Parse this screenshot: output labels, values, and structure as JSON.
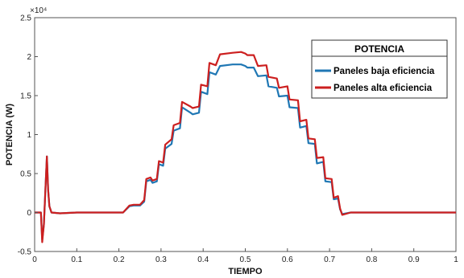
{
  "chart_data": {
    "type": "line",
    "xlabel": "TIEMPO",
    "ylabel": "POTENCIA (W)",
    "xlim": [
      0,
      1
    ],
    "ylim": [
      -0.5,
      2.5
    ],
    "y_multiplier": "×10⁴",
    "xticks": [
      "0",
      "0.1",
      "0.2",
      "0.3",
      "0.4",
      "0.5",
      "0.6",
      "0.7",
      "0.8",
      "0.9",
      "1"
    ],
    "yticks": [
      "-0.5",
      "0",
      "0.5",
      "1",
      "1.5",
      "2",
      "2.5"
    ],
    "legend": {
      "title": "POTENCIA",
      "position": "top-right"
    },
    "grid": false,
    "series": [
      {
        "name": "Paneles baja eficiencia",
        "color": "#1f77b4",
        "x": [
          0,
          0.015,
          0.018,
          0.022,
          0.026,
          0.029,
          0.032,
          0.035,
          0.04,
          0.06,
          0.1,
          0.15,
          0.21,
          0.225,
          0.235,
          0.25,
          0.26,
          0.265,
          0.275,
          0.28,
          0.29,
          0.295,
          0.305,
          0.31,
          0.325,
          0.33,
          0.345,
          0.35,
          0.37,
          0.375,
          0.39,
          0.395,
          0.41,
          0.415,
          0.43,
          0.44,
          0.47,
          0.49,
          0.5,
          0.505,
          0.52,
          0.53,
          0.55,
          0.555,
          0.575,
          0.58,
          0.6,
          0.605,
          0.625,
          0.63,
          0.645,
          0.65,
          0.665,
          0.67,
          0.685,
          0.69,
          0.705,
          0.71,
          0.72,
          0.725,
          0.73,
          0.75,
          0.8,
          0.9,
          1.0
        ],
        "y": [
          0,
          0,
          -0.35,
          -0.15,
          0.35,
          0.72,
          0.3,
          0.08,
          0.0,
          -0.01,
          0,
          0,
          0,
          0.08,
          0.09,
          0.09,
          0.14,
          0.4,
          0.42,
          0.38,
          0.4,
          0.62,
          0.6,
          0.82,
          0.88,
          1.05,
          1.08,
          1.35,
          1.28,
          1.26,
          1.28,
          1.55,
          1.52,
          1.8,
          1.77,
          1.88,
          1.9,
          1.9,
          1.88,
          1.86,
          1.86,
          1.75,
          1.76,
          1.62,
          1.6,
          1.49,
          1.5,
          1.35,
          1.34,
          1.09,
          1.11,
          0.89,
          0.88,
          0.63,
          0.65,
          0.4,
          0.39,
          0.17,
          0.18,
          0.04,
          -0.02,
          0,
          0,
          0,
          0
        ]
      },
      {
        "name": "Paneles alta eficiencia",
        "color": "#cc1f1f",
        "x": [
          0,
          0.015,
          0.018,
          0.022,
          0.026,
          0.029,
          0.032,
          0.035,
          0.04,
          0.06,
          0.1,
          0.15,
          0.21,
          0.225,
          0.235,
          0.25,
          0.26,
          0.265,
          0.275,
          0.28,
          0.29,
          0.295,
          0.305,
          0.31,
          0.325,
          0.33,
          0.345,
          0.35,
          0.37,
          0.375,
          0.39,
          0.395,
          0.41,
          0.415,
          0.43,
          0.44,
          0.47,
          0.49,
          0.5,
          0.505,
          0.52,
          0.53,
          0.55,
          0.555,
          0.575,
          0.58,
          0.6,
          0.605,
          0.625,
          0.63,
          0.645,
          0.65,
          0.665,
          0.67,
          0.685,
          0.69,
          0.705,
          0.71,
          0.72,
          0.725,
          0.73,
          0.75,
          0.8,
          0.9,
          1.0
        ],
        "y": [
          0,
          0,
          -0.38,
          -0.15,
          0.35,
          0.72,
          0.3,
          0.08,
          0.0,
          -0.01,
          0,
          0,
          0,
          0.09,
          0.1,
          0.1,
          0.16,
          0.43,
          0.45,
          0.41,
          0.43,
          0.66,
          0.64,
          0.87,
          0.94,
          1.12,
          1.15,
          1.42,
          1.36,
          1.34,
          1.36,
          1.64,
          1.62,
          1.92,
          1.89,
          2.03,
          2.05,
          2.06,
          2.04,
          2.02,
          2.02,
          1.88,
          1.89,
          1.74,
          1.72,
          1.6,
          1.62,
          1.45,
          1.44,
          1.17,
          1.19,
          0.95,
          0.94,
          0.7,
          0.71,
          0.44,
          0.43,
          0.19,
          0.21,
          0.05,
          -0.03,
          0,
          0,
          0,
          0
        ]
      }
    ]
  }
}
